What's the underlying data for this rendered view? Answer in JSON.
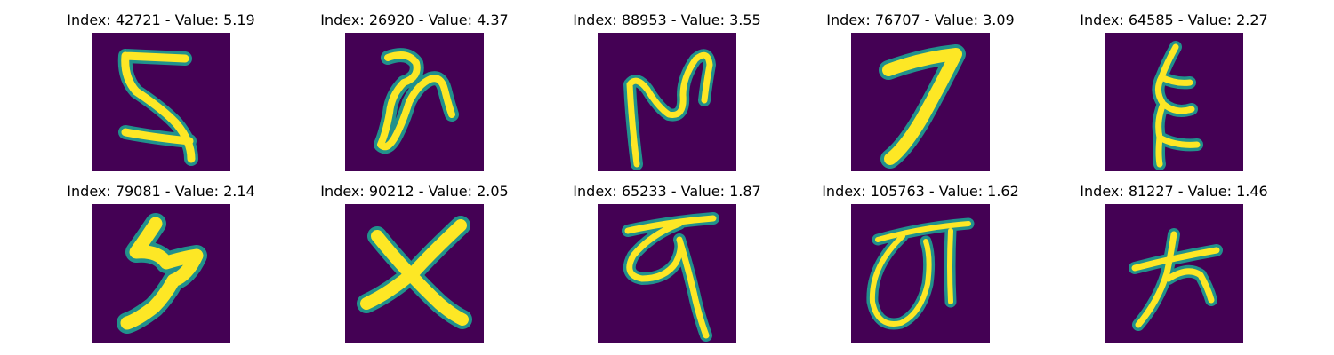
{
  "colors": {
    "background": "#440154",
    "stroke_mid": "#21918c",
    "stroke_core": "#fde725",
    "stroke_edge": "#35b779"
  },
  "grid": {
    "items": [
      {
        "title": "Index: 42721 - Value: 5.19"
      },
      {
        "title": "Index: 26920 - Value: 4.37"
      },
      {
        "title": "Index: 88953 - Value: 3.55"
      },
      {
        "title": "Index: 76707 - Value: 3.09"
      },
      {
        "title": "Index: 64585 - Value: 2.27"
      },
      {
        "title": "Index: 79081 - Value: 2.14"
      },
      {
        "title": "Index: 90212 - Value: 2.05"
      },
      {
        "title": "Index: 65233 - Value: 1.87"
      },
      {
        "title": "Index: 105763 - Value: 1.62"
      },
      {
        "title": "Index: 81227 - Value: 1.46"
      }
    ]
  }
}
